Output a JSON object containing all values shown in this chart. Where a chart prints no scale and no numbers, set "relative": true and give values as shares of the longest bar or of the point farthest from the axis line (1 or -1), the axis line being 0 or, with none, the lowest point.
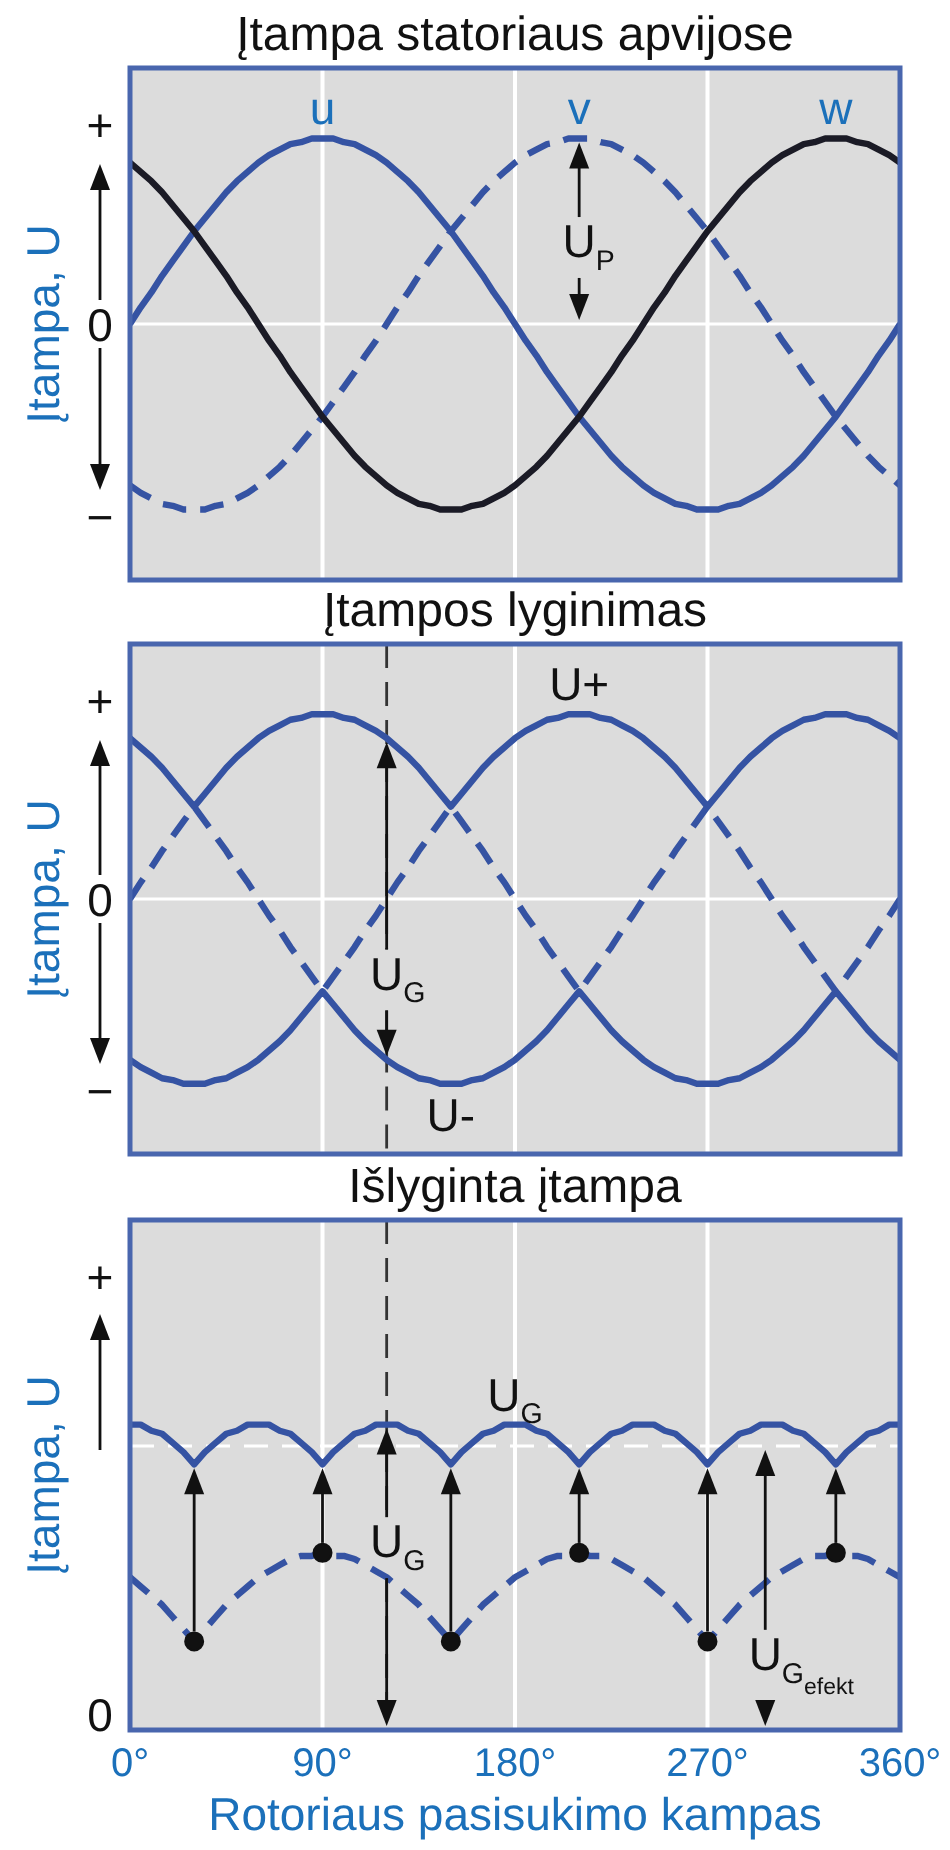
{
  "chart_data": [
    {
      "type": "line",
      "title": "Įtampa statoriaus apvijose",
      "ylabel": "Įtampa, U",
      "relative": true,
      "grid": "x",
      "tick_labels": false,
      "xlim": [
        0,
        360
      ],
      "xticks": [
        0,
        90,
        180,
        270,
        360
      ],
      "x": [
        0,
        5,
        10,
        15,
        20,
        25,
        30,
        35,
        40,
        45,
        50,
        55,
        60,
        65,
        70,
        75,
        80,
        85,
        90,
        95,
        100,
        105,
        110,
        115,
        120,
        125,
        130,
        135,
        140,
        145,
        150,
        155,
        160,
        165,
        170,
        175,
        180,
        185,
        190,
        195,
        200,
        205,
        210,
        215,
        220,
        225,
        230,
        235,
        240,
        245,
        250,
        255,
        260,
        265,
        270,
        275,
        280,
        285,
        290,
        295,
        300,
        305,
        310,
        315,
        320,
        325,
        330,
        335,
        340,
        345,
        350,
        355,
        360
      ],
      "annotations": [
        "+",
        "0",
        "−",
        "U$_{P}$"
      ],
      "series": [
        {
          "name": "u",
          "color": "#3553a3",
          "values": [
            0,
            0.09,
            0.17,
            0.26,
            0.34,
            0.42,
            0.5,
            0.57,
            0.64,
            0.71,
            0.77,
            0.82,
            0.87,
            0.91,
            0.94,
            0.97,
            0.98,
            1,
            1,
            1,
            0.98,
            0.97,
            0.94,
            0.91,
            0.87,
            0.82,
            0.77,
            0.71,
            0.64,
            0.57,
            0.5,
            0.42,
            0.34,
            0.26,
            0.17,
            0.09,
            0,
            -0.09,
            -0.17,
            -0.26,
            -0.34,
            -0.42,
            -0.5,
            -0.57,
            -0.64,
            -0.71,
            -0.77,
            -0.82,
            -0.87,
            -0.91,
            -0.94,
            -0.97,
            -0.98,
            -1,
            -1,
            -1,
            -0.98,
            -0.97,
            -0.94,
            -0.91,
            -0.87,
            -0.82,
            -0.77,
            -0.71,
            -0.64,
            -0.57,
            -0.5,
            -0.42,
            -0.34,
            -0.26,
            -0.17,
            -0.09,
            0
          ]
        },
        {
          "name": "v",
          "color": "#3553a3",
          "line_style": "dashed",
          "values": [
            -0.87,
            -0.91,
            -0.94,
            -0.97,
            -0.98,
            -1,
            -1,
            -1,
            -0.98,
            -0.97,
            -0.94,
            -0.91,
            -0.87,
            -0.82,
            -0.77,
            -0.71,
            -0.64,
            -0.57,
            -0.5,
            -0.42,
            -0.34,
            -0.26,
            -0.17,
            -0.09,
            0,
            0.09,
            0.17,
            0.26,
            0.34,
            0.42,
            0.5,
            0.57,
            0.64,
            0.71,
            0.77,
            0.82,
            0.87,
            0.91,
            0.94,
            0.97,
            0.98,
            1,
            1,
            1,
            0.98,
            0.97,
            0.94,
            0.91,
            0.87,
            0.82,
            0.77,
            0.71,
            0.64,
            0.57,
            0.5,
            0.42,
            0.34,
            0.26,
            0.17,
            0.09,
            0,
            -0.09,
            -0.17,
            -0.26,
            -0.34,
            -0.42,
            -0.5,
            -0.57,
            -0.64,
            -0.71,
            -0.77,
            -0.82,
            -0.87
          ]
        },
        {
          "name": "w",
          "color": "#1b1b26",
          "values": [
            0.87,
            0.82,
            0.77,
            0.71,
            0.64,
            0.57,
            0.5,
            0.42,
            0.34,
            0.26,
            0.17,
            0.09,
            0,
            -0.09,
            -0.17,
            -0.26,
            -0.34,
            -0.42,
            -0.5,
            -0.57,
            -0.64,
            -0.71,
            -0.77,
            -0.82,
            -0.87,
            -0.91,
            -0.94,
            -0.97,
            -0.98,
            -1,
            -1,
            -1,
            -0.98,
            -0.97,
            -0.94,
            -0.91,
            -0.87,
            -0.82,
            -0.77,
            -0.71,
            -0.64,
            -0.57,
            -0.5,
            -0.42,
            -0.34,
            -0.26,
            -0.17,
            -0.09,
            0,
            0.09,
            0.17,
            0.26,
            0.34,
            0.42,
            0.5,
            0.57,
            0.64,
            0.71,
            0.77,
            0.82,
            0.87,
            0.91,
            0.94,
            0.97,
            0.98,
            1,
            1,
            1,
            0.98,
            0.97,
            0.94,
            0.91,
            0.87
          ]
        }
      ]
    },
    {
      "type": "line",
      "title": "Įtampos lyginimas",
      "ylabel": "Įtampa, U",
      "relative": true,
      "grid": "x",
      "tick_labels": false,
      "xlim": [
        0,
        360
      ],
      "xticks": [
        0,
        90,
        180,
        270,
        360
      ],
      "x": [
        0,
        5,
        10,
        15,
        20,
        25,
        30,
        35,
        40,
        45,
        50,
        55,
        60,
        65,
        70,
        75,
        80,
        85,
        90,
        95,
        100,
        105,
        110,
        115,
        120,
        125,
        130,
        135,
        140,
        145,
        150,
        155,
        160,
        165,
        170,
        175,
        180,
        185,
        190,
        195,
        200,
        205,
        210,
        215,
        220,
        225,
        230,
        235,
        240,
        245,
        250,
        255,
        260,
        265,
        270,
        275,
        280,
        285,
        290,
        295,
        300,
        305,
        310,
        315,
        320,
        325,
        330,
        335,
        340,
        345,
        350,
        355,
        360
      ],
      "annotations": [
        "+",
        "0",
        "−",
        "U$_{G}$"
      ],
      "ref_lines": [
        {
          "axis": "x",
          "value": 120,
          "color": "#333333",
          "line_style": "dashed"
        }
      ],
      "series": [
        {
          "name": "U+",
          "color": "#3553a3",
          "values": [
            0.87,
            0.82,
            0.77,
            0.71,
            0.64,
            0.57,
            0.5,
            0.57,
            0.64,
            0.71,
            0.77,
            0.82,
            0.87,
            0.91,
            0.94,
            0.97,
            0.98,
            1,
            1,
            1,
            0.98,
            0.97,
            0.94,
            0.91,
            0.87,
            0.82,
            0.77,
            0.71,
            0.64,
            0.57,
            0.5,
            0.57,
            0.64,
            0.71,
            0.77,
            0.82,
            0.87,
            0.91,
            0.94,
            0.97,
            0.98,
            1,
            1,
            1,
            0.98,
            0.97,
            0.94,
            0.91,
            0.87,
            0.82,
            0.77,
            0.71,
            0.64,
            0.57,
            0.5,
            0.57,
            0.64,
            0.71,
            0.77,
            0.82,
            0.87,
            0.91,
            0.94,
            0.97,
            0.98,
            1,
            1,
            1,
            0.98,
            0.97,
            0.94,
            0.91,
            0.87
          ]
        },
        {
          "name": "U-",
          "color": "#3553a3",
          "values": [
            -0.87,
            -0.91,
            -0.94,
            -0.97,
            -0.98,
            -1,
            -1,
            -1,
            -0.98,
            -0.97,
            -0.94,
            -0.91,
            -0.87,
            -0.82,
            -0.77,
            -0.71,
            -0.64,
            -0.57,
            -0.5,
            -0.57,
            -0.64,
            -0.71,
            -0.77,
            -0.82,
            -0.87,
            -0.91,
            -0.94,
            -0.97,
            -0.98,
            -1,
            -1,
            -1,
            -0.98,
            -0.97,
            -0.94,
            -0.91,
            -0.87,
            -0.82,
            -0.77,
            -0.71,
            -0.64,
            -0.57,
            -0.5,
            -0.57,
            -0.64,
            -0.71,
            -0.77,
            -0.82,
            -0.87,
            -0.91,
            -0.94,
            -0.97,
            -0.98,
            -1,
            -1,
            -1,
            -0.98,
            -0.97,
            -0.94,
            -0.91,
            -0.87,
            -0.82,
            -0.77,
            -0.71,
            -0.64,
            -0.57,
            -0.5,
            -0.57,
            -0.64,
            -0.71,
            -0.77,
            -0.82,
            -0.87
          ]
        },
        {
          "color": "#3553a3",
          "line_style": "dashed",
          "values": [
            0,
            0.09,
            0.17,
            0.26,
            0.34,
            0.42,
            0.5,
            0.42,
            0.34,
            0.26,
            0.17,
            0.09,
            0,
            -0.09,
            -0.17,
            -0.26,
            -0.34,
            -0.42,
            -0.5,
            -0.42,
            -0.34,
            -0.26,
            -0.17,
            -0.09,
            0,
            0.09,
            0.17,
            0.26,
            0.34,
            0.42,
            0.5,
            0.42,
            0.34,
            0.26,
            0.17,
            0.09,
            0,
            -0.09,
            -0.17,
            -0.26,
            -0.34,
            -0.42,
            -0.5,
            -0.42,
            -0.34,
            -0.26,
            -0.17,
            -0.09,
            0,
            0.09,
            0.17,
            0.26,
            0.34,
            0.42,
            0.5,
            0.42,
            0.34,
            0.26,
            0.17,
            0.09,
            0,
            -0.09,
            -0.17,
            -0.26,
            -0.34,
            -0.42,
            -0.5,
            -0.42,
            -0.34,
            -0.26,
            -0.17,
            -0.09,
            0
          ]
        }
      ]
    },
    {
      "type": "line",
      "title": "Išlyginta įtampa",
      "xlabel": "Rotoriaus pasisukimo kampas",
      "ylabel": "Įtampa, U",
      "relative": true,
      "grid": "x",
      "tick_labels": "x",
      "xlim": [
        0,
        360
      ],
      "xticks": [
        {
          "value": 0,
          "label": "0°"
        },
        {
          "value": 90,
          "label": "90°"
        },
        {
          "value": 180,
          "label": "180°"
        },
        {
          "value": 270,
          "label": "270°"
        },
        {
          "value": 360,
          "label": "360°"
        }
      ],
      "x": [
        0,
        5,
        10,
        15,
        20,
        25,
        30,
        35,
        40,
        45,
        50,
        55,
        60,
        65,
        70,
        75,
        80,
        85,
        90,
        95,
        100,
        105,
        110,
        115,
        120,
        125,
        130,
        135,
        140,
        145,
        150,
        155,
        160,
        165,
        170,
        175,
        180,
        185,
        190,
        195,
        200,
        205,
        210,
        215,
        220,
        225,
        230,
        235,
        240,
        245,
        250,
        255,
        260,
        265,
        270,
        275,
        280,
        285,
        290,
        295,
        300,
        305,
        310,
        315,
        320,
        325,
        330,
        335,
        340,
        345,
        350,
        355,
        360
      ],
      "annotations": [
        "+",
        "0",
        "U$_{G}$",
        "U$_{G}$$_{efekt}$"
      ],
      "ref_lines": [
        {
          "axis": "x",
          "value": 120,
          "color": "#333333",
          "line_style": "dashed"
        },
        {
          "axis": "y",
          "value": 0.93,
          "color": "#ffffff",
          "line_style": "dashed"
        }
      ],
      "series": [
        {
          "name": "U$_{G}$",
          "color": "#3553a3",
          "values": [
            1,
            1,
            0.98,
            0.97,
            0.94,
            0.91,
            0.87,
            0.91,
            0.94,
            0.97,
            0.98,
            1,
            1,
            1,
            0.98,
            0.97,
            0.94,
            0.91,
            0.87,
            0.91,
            0.94,
            0.97,
            0.98,
            1,
            1,
            1,
            0.98,
            0.97,
            0.94,
            0.91,
            0.87,
            0.91,
            0.94,
            0.97,
            0.98,
            1,
            1,
            1,
            0.98,
            0.97,
            0.94,
            0.91,
            0.87,
            0.91,
            0.94,
            0.97,
            0.98,
            1,
            1,
            1,
            0.98,
            0.97,
            0.94,
            0.91,
            0.87,
            0.91,
            0.94,
            0.97,
            0.98,
            1,
            1,
            1,
            0.98,
            0.97,
            0.94,
            0.91,
            0.87,
            0.91,
            0.94,
            0.97,
            0.98,
            1,
            1
          ]
        },
        {
          "color": "#3553a3",
          "line_style": "dashed",
          "values": [
            0.5,
            0.47,
            0.44,
            0.41,
            0.37,
            0.33,
            0.29,
            0.33,
            0.37,
            0.41,
            0.44,
            0.47,
            0.5,
            0.52,
            0.54,
            0.56,
            0.57,
            0.57,
            0.58,
            0.57,
            0.57,
            0.56,
            0.54,
            0.52,
            0.5,
            0.47,
            0.44,
            0.41,
            0.37,
            0.33,
            0.29,
            0.33,
            0.37,
            0.41,
            0.44,
            0.47,
            0.5,
            0.52,
            0.54,
            0.56,
            0.57,
            0.57,
            0.58,
            0.57,
            0.57,
            0.56,
            0.54,
            0.52,
            0.5,
            0.47,
            0.44,
            0.41,
            0.37,
            0.33,
            0.29,
            0.33,
            0.37,
            0.41,
            0.44,
            0.47,
            0.5,
            0.52,
            0.54,
            0.56,
            0.57,
            0.57,
            0.58,
            0.57,
            0.57,
            0.56,
            0.54,
            0.52,
            0.5
          ]
        },
        {
          "type": "scatter",
          "marker": "circle",
          "color": "#111111",
          "x": [
            30,
            90,
            150,
            210,
            270,
            330
          ],
          "values": [
            0.29,
            0.58,
            0.29,
            0.58,
            0.29,
            0.58
          ]
        }
      ]
    }
  ]
}
